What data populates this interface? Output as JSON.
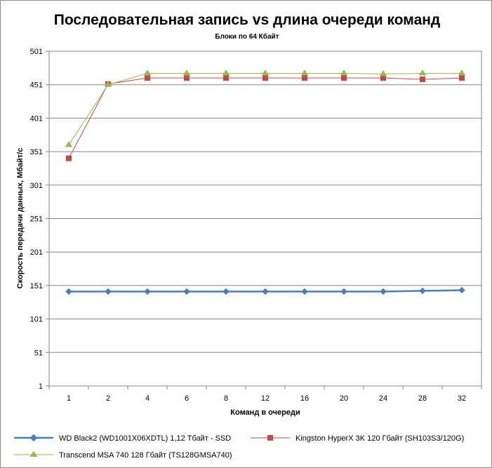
{
  "chart_data": {
    "type": "line",
    "title": "Последовательная запись vs длина очереди команд",
    "subtitle": "Блоки  по 64 Кбайт",
    "xlabel": "Команд  в очереди",
    "ylabel": "Скорость  передачи данных, Мбайт/с",
    "categories": [
      "1",
      "2",
      "4",
      "6",
      "8",
      "12",
      "16",
      "20",
      "24",
      "28",
      "32"
    ],
    "ylim": [
      1,
      501
    ],
    "yticks": [
      "1",
      "51",
      "101",
      "151",
      "201",
      "251",
      "301",
      "351",
      "401",
      "451",
      "501"
    ],
    "grid": true,
    "legend_position": "bottom",
    "series": [
      {
        "name": "WD Black2 (WD1001X06XDTL) 1,12 Тбайт - SSD",
        "color": "#4a7ebb",
        "marker": "diamond",
        "values": [
          142,
          142,
          142,
          142,
          142,
          142,
          142,
          142,
          142,
          143,
          144
        ]
      },
      {
        "name": "Kingston HyperX  3K 120 Гбайт (SH103S3/120G)",
        "color": "#be4b48",
        "marker": "square",
        "values": [
          341,
          452,
          461,
          461,
          461,
          461,
          461,
          461,
          461,
          459,
          461
        ]
      },
      {
        "name": "Transcend MSA 740 128 Гбайт (TS128GMSA740)",
        "color": "#98b954",
        "marker": "triangle",
        "values": [
          361,
          451,
          468,
          468,
          468,
          468,
          468,
          468,
          467,
          468,
          468
        ]
      }
    ]
  }
}
